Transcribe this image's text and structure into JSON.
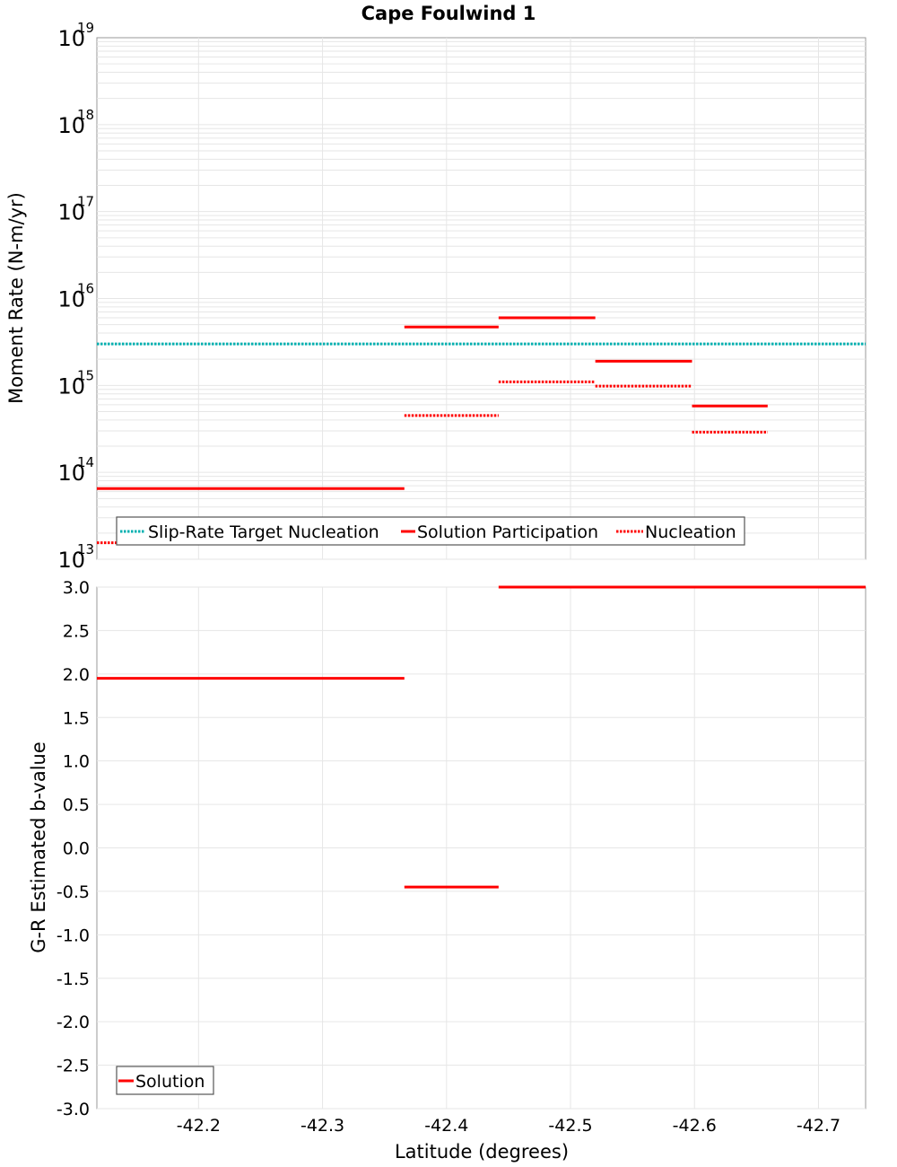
{
  "chart_data": [
    {
      "type": "line",
      "title": "Cape Foulwind 1",
      "xlabel": "Latitude (degrees)",
      "ylabel": "Moment Rate (N-m/yr)",
      "yscale": "log",
      "ylim_exp": [
        13,
        19
      ],
      "xlim": [
        -42.118,
        -42.738
      ],
      "y_tick_labels": [
        {
          "exp": 19,
          "base": "10",
          "sup": "19"
        },
        {
          "exp": 18,
          "base": "10",
          "sup": "18"
        },
        {
          "exp": 17,
          "base": "10",
          "sup": "17"
        },
        {
          "exp": 16,
          "base": "10",
          "sup": "16"
        },
        {
          "exp": 15,
          "base": "10",
          "sup": "15"
        },
        {
          "exp": 14,
          "base": "10",
          "sup": "14"
        },
        {
          "exp": 13,
          "base": "10",
          "sup": "13"
        }
      ],
      "legend": {
        "position": "bottom-left",
        "entries": [
          {
            "label": "Slip-Rate Target Nucleation",
            "color": "#00b0b0",
            "style": "dotted"
          },
          {
            "label": "Solution Participation",
            "color": "#ff0000",
            "style": "solid"
          },
          {
            "label": "Nucleation",
            "color": "#ff0000",
            "style": "dotted"
          }
        ]
      },
      "series": [
        {
          "name": "Slip-Rate Target Nucleation",
          "color": "#00b0b0",
          "style": "dotted",
          "segments": [
            {
              "x0": -42.118,
              "x1": -42.738,
              "y": 3000000000000000.0
            }
          ]
        },
        {
          "name": "Solution Participation",
          "color": "#ff0000",
          "style": "solid",
          "segments": [
            {
              "x0": -42.118,
              "x1": -42.366,
              "y": 65000000000000.0
            },
            {
              "x0": -42.366,
              "x1": -42.442,
              "y": 4700000000000000.0
            },
            {
              "x0": -42.442,
              "x1": -42.52,
              "y": 6000000000000000.0
            },
            {
              "x0": -42.52,
              "x1": -42.598,
              "y": 1900000000000000.0
            },
            {
              "x0": -42.598,
              "x1": -42.659,
              "y": 580000000000000.0
            }
          ]
        },
        {
          "name": "Nucleation",
          "color": "#ff0000",
          "style": "dotted",
          "segments": [
            {
              "x0": -42.118,
              "x1": -42.366,
              "y": 15500000000000.0
            },
            {
              "x0": -42.366,
              "x1": -42.442,
              "y": 450000000000000.0
            },
            {
              "x0": -42.442,
              "x1": -42.52,
              "y": 1100000000000000.0
            },
            {
              "x0": -42.52,
              "x1": -42.598,
              "y": 980000000000000.0
            },
            {
              "x0": -42.598,
              "x1": -42.659,
              "y": 290000000000000.0
            }
          ]
        }
      ]
    },
    {
      "type": "line",
      "title": "",
      "xlabel": "Latitude (degrees)",
      "ylabel": "G-R Estimated b-value",
      "ylim": [
        -3.0,
        3.0
      ],
      "xlim": [
        -42.118,
        -42.738
      ],
      "x_ticks": [
        -42.2,
        -42.3,
        -42.4,
        -42.5,
        -42.6,
        -42.7
      ],
      "x_tick_labels": [
        "-42.2",
        "-42.3",
        "-42.4",
        "-42.5",
        "-42.6",
        "-42.7"
      ],
      "y_ticks": [
        3.0,
        2.5,
        2.0,
        1.5,
        1.0,
        0.5,
        0.0,
        -0.5,
        -1.0,
        -1.5,
        -2.0,
        -2.5,
        -3.0
      ],
      "y_tick_labels": [
        "3.0",
        "2.5",
        "2.0",
        "1.5",
        "1.0",
        "0.5",
        "0.0",
        "-0.5",
        "-1.0",
        "-1.5",
        "-2.0",
        "-2.5",
        "-3.0"
      ],
      "legend": {
        "position": "bottom-left",
        "entries": [
          {
            "label": "Solution",
            "color": "#ff0000",
            "style": "solid"
          }
        ]
      },
      "series": [
        {
          "name": "Solution",
          "color": "#ff0000",
          "style": "solid",
          "segments": [
            {
              "x0": -42.118,
              "x1": -42.366,
              "y": 1.95
            },
            {
              "x0": -42.366,
              "x1": -42.442,
              "y": -0.45
            },
            {
              "x0": -42.442,
              "x1": -42.738,
              "y": 3.0
            }
          ]
        }
      ]
    }
  ]
}
